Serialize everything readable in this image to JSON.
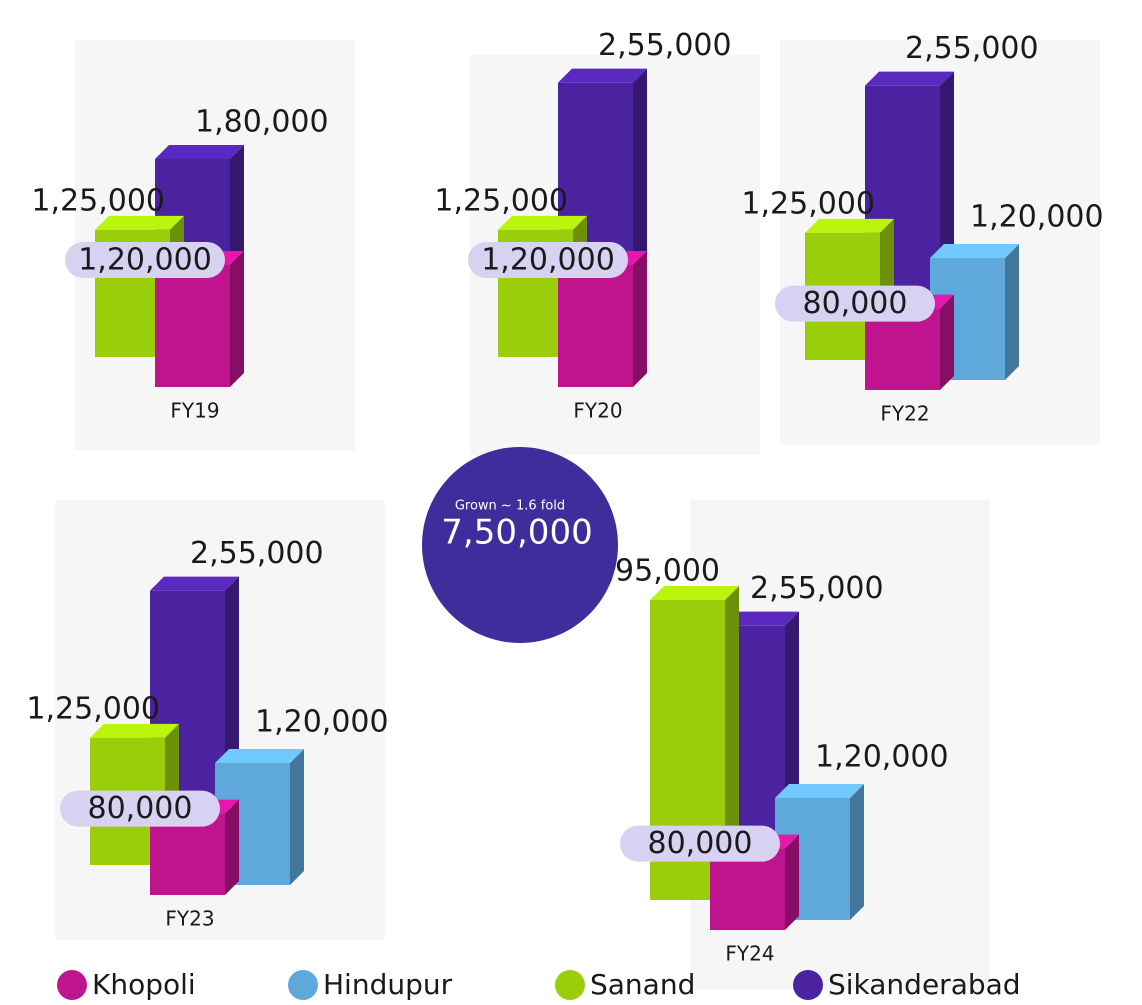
{
  "chart_data": {
    "type": "bar",
    "categories": [
      "FY19",
      "FY20",
      "FY22",
      "FY23",
      "FY24"
    ],
    "series": [
      {
        "name": "Khopoli",
        "color": "#c0148f",
        "values": [
          120000,
          120000,
          80000,
          80000,
          80000
        ],
        "value_labels": [
          "1,20,000",
          "1,20,000",
          "80,000",
          "80,000",
          "80,000"
        ]
      },
      {
        "name": "Hindupur",
        "color": "#5ea8dc",
        "values": [
          null,
          null,
          120000,
          120000,
          120000
        ],
        "value_labels": [
          null,
          null,
          "1,20,000",
          "1,20,000",
          "1,20,000"
        ]
      },
      {
        "name": "Sanand",
        "color": "#9acd0a",
        "values": [
          125000,
          125000,
          125000,
          125000,
          295000
        ],
        "value_labels": [
          "1,25,000",
          "1,25,000",
          "1,25,000",
          "1,25,000",
          "2,95,000"
        ]
      },
      {
        "name": "Sikanderabad",
        "color": "#4b22a0",
        "values": [
          180000,
          255000,
          255000,
          255000,
          255000
        ],
        "value_labels": [
          "1,80,000",
          "2,55,000",
          "2,55,000",
          "2,55,000",
          "2,55,000"
        ]
      }
    ],
    "annotation": {
      "text": "Grown ~ 1.6 fold",
      "value": 750000,
      "value_label": "7,50,000",
      "color": "#3e2e9c"
    }
  }
}
